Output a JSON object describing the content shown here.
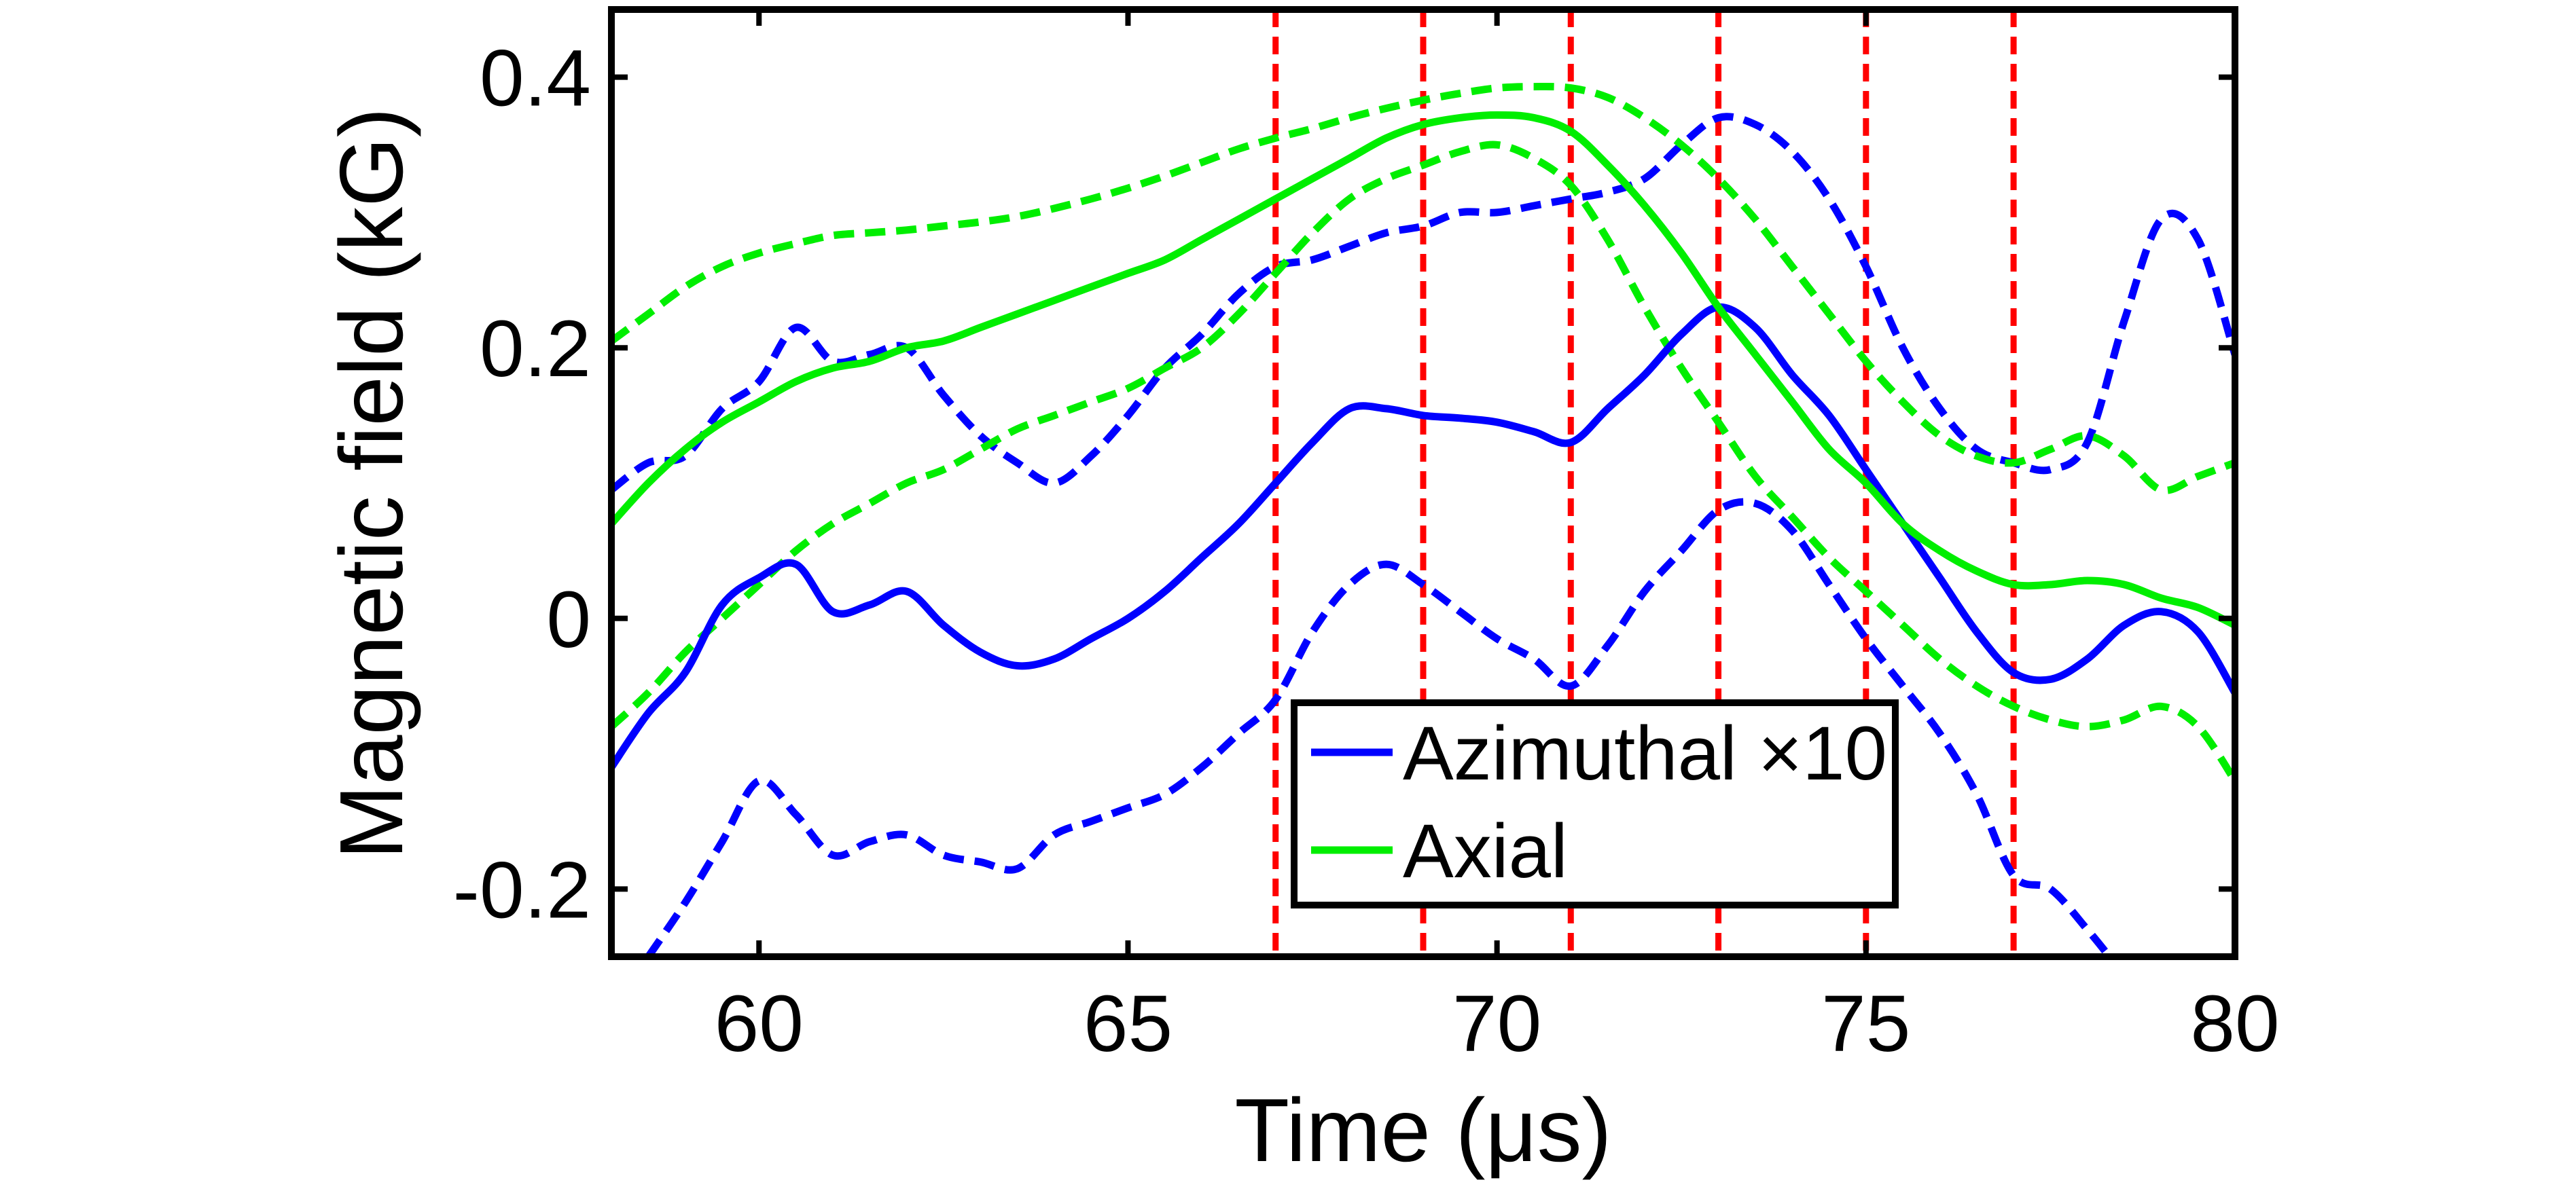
{
  "chart_data": {
    "type": "line",
    "xlabel": "Time (μs)",
    "ylabel": "Magnetic field (kG)",
    "xlim": [
      58,
      80
    ],
    "ylim": [
      -0.25,
      0.45
    ],
    "xticks": [
      60,
      65,
      70,
      75,
      80
    ],
    "xtick_labels": [
      "60",
      "65",
      "70",
      "75",
      "80"
    ],
    "yticks": [
      -0.2,
      0,
      0.2,
      0.4
    ],
    "ytick_labels": [
      "-0.2",
      "0",
      "0.2",
      "0.4"
    ],
    "grid": false,
    "legend_placement": "bottom-center",
    "vertical_lines": [
      67,
      69,
      71,
      73,
      75,
      77
    ],
    "vertical_line_color": "#ff0000",
    "series": [
      {
        "name": "Azimuthal ×10",
        "color": "#0000ff",
        "style": "solid",
        "x": [
          58,
          58.5,
          59,
          59.5,
          60,
          60.5,
          61,
          61.5,
          62,
          62.5,
          63,
          63.5,
          64,
          64.5,
          65,
          65.5,
          66,
          66.5,
          67,
          67.5,
          68,
          68.5,
          69,
          69.5,
          70,
          70.5,
          71,
          71.5,
          72,
          72.5,
          73,
          73.5,
          74,
          74.5,
          75,
          75.5,
          76,
          76.5,
          77,
          77.5,
          78,
          78.5,
          79,
          79.5,
          80
        ],
        "y": [
          -0.11,
          -0.07,
          -0.04,
          0.01,
          0.03,
          0.04,
          0.005,
          0.01,
          0.02,
          -0.005,
          -0.025,
          -0.035,
          -0.03,
          -0.015,
          0.0,
          0.02,
          0.045,
          0.07,
          0.1,
          0.13,
          0.155,
          0.155,
          0.15,
          0.148,
          0.145,
          0.138,
          0.13,
          0.155,
          0.18,
          0.21,
          0.23,
          0.215,
          0.18,
          0.15,
          0.11,
          0.07,
          0.03,
          -0.01,
          -0.04,
          -0.045,
          -0.03,
          -0.005,
          0.005,
          -0.01,
          -0.055
        ]
      },
      {
        "name": "",
        "color": "#0000ff",
        "style": "dashed",
        "x": [
          58,
          58.5,
          59,
          59.5,
          60,
          60.5,
          61,
          61.5,
          62,
          62.5,
          63,
          63.5,
          64,
          64.5,
          65,
          65.5,
          66,
          66.5,
          67,
          67.5,
          68,
          68.5,
          69,
          69.5,
          70,
          70.5,
          71,
          71.5,
          72,
          72.5,
          73,
          73.5,
          74,
          74.5,
          75,
          75.5,
          76,
          76.5,
          77,
          77.5,
          78,
          78.5,
          79,
          79.5,
          80
        ],
        "y": [
          0.095,
          0.115,
          0.12,
          0.155,
          0.175,
          0.215,
          0.19,
          0.195,
          0.2,
          0.165,
          0.135,
          0.115,
          0.1,
          0.12,
          0.15,
          0.185,
          0.21,
          0.24,
          0.26,
          0.265,
          0.275,
          0.285,
          0.29,
          0.3,
          0.3,
          0.305,
          0.31,
          0.315,
          0.325,
          0.35,
          0.37,
          0.365,
          0.345,
          0.31,
          0.26,
          0.2,
          0.155,
          0.125,
          0.115,
          0.11,
          0.13,
          0.22,
          0.295,
          0.28,
          0.195
        ]
      },
      {
        "name": "",
        "color": "#0000ff",
        "style": "dashed",
        "x": [
          58.5,
          59,
          59.5,
          60,
          60.5,
          61,
          61.5,
          62,
          62.5,
          63,
          63.5,
          64,
          64.5,
          65,
          65.5,
          66,
          66.5,
          67,
          67.5,
          68,
          68.5,
          69,
          69.5,
          70,
          70.5,
          71,
          71.5,
          72,
          72.5,
          73,
          73.5,
          74,
          74.5,
          75,
          75.5,
          76,
          76.5,
          77,
          77.5,
          78,
          78.3
        ],
        "y": [
          -0.25,
          -0.21,
          -0.165,
          -0.12,
          -0.145,
          -0.175,
          -0.165,
          -0.16,
          -0.175,
          -0.18,
          -0.185,
          -0.16,
          -0.15,
          -0.14,
          -0.13,
          -0.11,
          -0.085,
          -0.06,
          -0.01,
          0.025,
          0.04,
          0.025,
          0.005,
          -0.015,
          -0.03,
          -0.05,
          -0.02,
          0.02,
          0.05,
          0.08,
          0.085,
          0.065,
          0.025,
          -0.015,
          -0.05,
          -0.085,
          -0.13,
          -0.19,
          -0.2,
          -0.23,
          -0.25
        ]
      },
      {
        "name": "Axial",
        "color": "#00ee00",
        "style": "solid",
        "x": [
          58,
          58.5,
          59,
          59.5,
          60,
          60.5,
          61,
          61.5,
          62,
          62.5,
          63,
          63.5,
          64,
          64.5,
          65,
          65.5,
          66,
          66.5,
          67,
          67.5,
          68,
          68.5,
          69,
          69.5,
          70,
          70.5,
          71,
          71.5,
          72,
          72.5,
          73,
          73.5,
          74,
          74.5,
          75,
          75.5,
          76,
          76.5,
          77,
          77.5,
          78,
          78.5,
          79,
          79.5,
          80
        ],
        "y": [
          0.07,
          0.1,
          0.125,
          0.145,
          0.16,
          0.175,
          0.185,
          0.19,
          0.2,
          0.205,
          0.215,
          0.225,
          0.235,
          0.245,
          0.255,
          0.265,
          0.28,
          0.295,
          0.31,
          0.325,
          0.34,
          0.355,
          0.365,
          0.37,
          0.372,
          0.37,
          0.36,
          0.335,
          0.305,
          0.27,
          0.23,
          0.195,
          0.16,
          0.125,
          0.1,
          0.07,
          0.05,
          0.035,
          0.025,
          0.025,
          0.028,
          0.025,
          0.015,
          0.008,
          -0.005
        ]
      },
      {
        "name": "",
        "color": "#00ee00",
        "style": "dashed",
        "x": [
          58,
          58.5,
          59,
          59.5,
          60,
          60.5,
          61,
          61.5,
          62,
          62.5,
          63,
          63.5,
          64,
          64.5,
          65,
          65.5,
          66,
          66.5,
          67,
          67.5,
          68,
          68.5,
          69,
          69.5,
          70,
          70.5,
          71,
          71.5,
          72,
          72.5,
          73,
          73.5,
          74,
          74.5,
          75,
          75.5,
          76,
          76.5,
          77,
          77.5,
          78,
          78.5,
          79,
          79.5,
          80
        ],
        "y": [
          0.205,
          0.225,
          0.245,
          0.26,
          0.27,
          0.277,
          0.283,
          0.285,
          0.287,
          0.29,
          0.293,
          0.297,
          0.303,
          0.31,
          0.318,
          0.327,
          0.337,
          0.347,
          0.355,
          0.362,
          0.37,
          0.377,
          0.383,
          0.388,
          0.392,
          0.393,
          0.392,
          0.385,
          0.37,
          0.35,
          0.325,
          0.295,
          0.26,
          0.225,
          0.19,
          0.16,
          0.135,
          0.12,
          0.115,
          0.125,
          0.135,
          0.12,
          0.095,
          0.105,
          0.115
        ]
      },
      {
        "name": "",
        "color": "#00ee00",
        "style": "dashed",
        "x": [
          58,
          58.5,
          59,
          59.5,
          60,
          60.5,
          61,
          61.5,
          62,
          62.5,
          63,
          63.5,
          64,
          64.5,
          65,
          65.5,
          66,
          66.5,
          67,
          67.5,
          68,
          68.5,
          69,
          69.5,
          70,
          70.5,
          71,
          71.5,
          72,
          72.5,
          73,
          73.5,
          74,
          74.5,
          75,
          75.5,
          76,
          76.5,
          77,
          77.5,
          78,
          78.5,
          79,
          79.5,
          80
        ],
        "y": [
          -0.08,
          -0.055,
          -0.025,
          0.0,
          0.025,
          0.05,
          0.07,
          0.085,
          0.1,
          0.11,
          0.125,
          0.14,
          0.15,
          0.16,
          0.17,
          0.185,
          0.2,
          0.225,
          0.255,
          0.285,
          0.31,
          0.325,
          0.335,
          0.345,
          0.35,
          0.34,
          0.32,
          0.28,
          0.23,
          0.185,
          0.145,
          0.105,
          0.075,
          0.045,
          0.02,
          -0.005,
          -0.03,
          -0.05,
          -0.065,
          -0.075,
          -0.08,
          -0.075,
          -0.065,
          -0.08,
          -0.12
        ]
      }
    ]
  }
}
